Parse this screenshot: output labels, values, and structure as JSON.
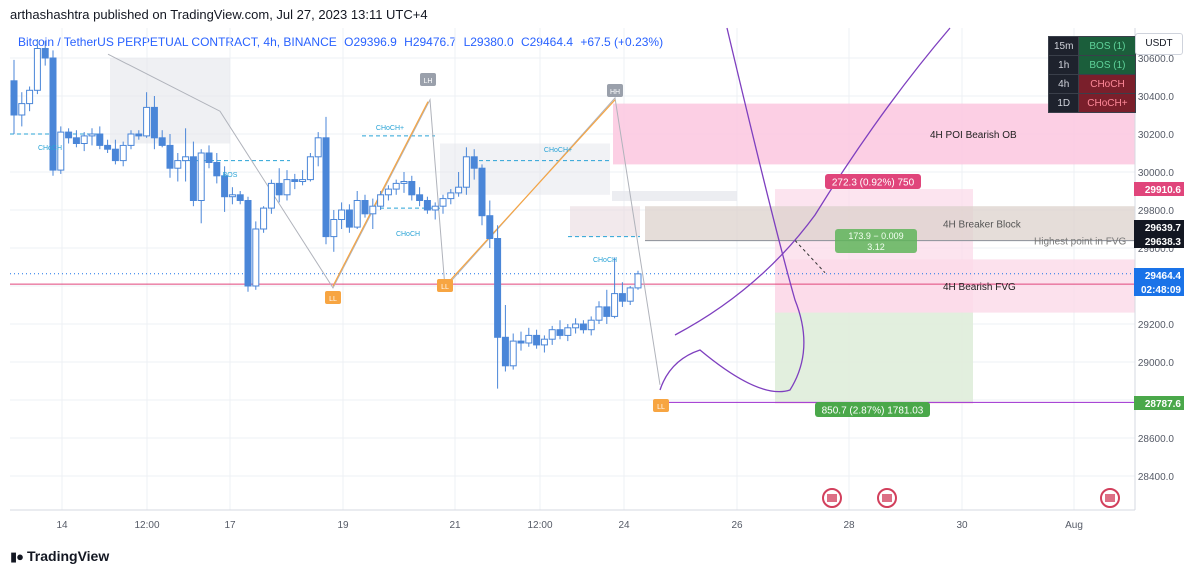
{
  "publisher_line": "arthashashtra published on TradingView.com, Jul 27, 2023 13:11 UTC+4",
  "legend": {
    "symbol": "Bitcoin / TetherUS PERPETUAL CONTRACT, 4h, BINANCE",
    "open": "O29396.9",
    "high": "H29476.7",
    "low": "L29380.0",
    "close": "C29464.4",
    "change": "+67.5 (+0.23%)"
  },
  "currency_button": "USDT",
  "brand": "TradingView",
  "colors": {
    "bull": "#2962ff",
    "bear": "#4a86d8",
    "poi_zone": "#fcc7df",
    "breaker_zone": "#dcd2cc",
    "fvg_zone": "#fbd9e8",
    "target_zone": "#dff0dc",
    "swing_line": "#f7a542",
    "zigzag_line": "#b0b3bb",
    "curve": "#7e3fbf",
    "choch": "#29a3d6",
    "price_tag": "#1a73e8"
  },
  "tf_table": [
    {
      "tf": "15m",
      "status": "BOS (1)",
      "kind": "bos"
    },
    {
      "tf": "1h",
      "status": "BOS (1)",
      "kind": "bos"
    },
    {
      "tf": "4h",
      "status": "CHoCH",
      "kind": "choch"
    },
    {
      "tf": "1D",
      "status": "CHoCH+",
      "kind": "choch"
    }
  ],
  "zone_labels": {
    "poi": "4H POI Bearish OB",
    "breaker": "4H Breaker Block",
    "fvg": "4H Bearish FVG",
    "fvg_high": "Highest point in FVG"
  },
  "measure_labels": {
    "upper": "272.3 (0.92%) 750",
    "middle_top": "173.9 − 0.009",
    "middle_bottom": "3.12",
    "lower": "850.7 (2.87%) 1781.03"
  },
  "structure_labels": [
    "CHoCH",
    "BOS",
    "CHoCH+",
    "CHoCH",
    "CHoCH+",
    "CHoCH"
  ],
  "swing_labels": [
    "LL",
    "LL",
    "LL",
    "LH",
    "HH"
  ],
  "price_tags": [
    {
      "text": "29910.6",
      "kind": "pink"
    },
    {
      "text": "29639.7",
      "kind": "black"
    },
    {
      "text": "29638.3",
      "kind": "black"
    },
    {
      "text": "29464.4",
      "kind": "blue"
    },
    {
      "text": "02:48:09",
      "kind": "blue"
    },
    {
      "text": "28787.6",
      "kind": "green"
    }
  ],
  "chart_data": {
    "type": "candlestick",
    "symbol": "BTCUSDT.P",
    "timeframe": "4h",
    "y_axis": {
      "ticks": [
        28400,
        28600,
        28800,
        29000,
        29200,
        29400,
        29600,
        29800,
        30000,
        30200,
        30400,
        30600
      ],
      "tick_labels": [
        "28400.0",
        "28600.0",
        "28800.0",
        "29000.0",
        "29200.0",
        "29400.0",
        "29600.0",
        "29800.0",
        "30000.0",
        "30200.0",
        "30400.0",
        "30600.0"
      ]
    },
    "x_axis": {
      "tick_labels": [
        "14",
        "12:00",
        "17",
        "19",
        "21",
        "12:00",
        "24",
        "26",
        "28",
        "30",
        "Aug"
      ]
    },
    "candles": [
      [
        30480,
        30590,
        30200,
        30300
      ],
      [
        30300,
        30420,
        30240,
        30360
      ],
      [
        30360,
        30450,
        30320,
        30430
      ],
      [
        30430,
        30700,
        30410,
        30650
      ],
      [
        30650,
        30690,
        30560,
        30600
      ],
      [
        30600,
        30640,
        29980,
        30010
      ],
      [
        30010,
        30240,
        29990,
        30210
      ],
      [
        30210,
        30230,
        30150,
        30180
      ],
      [
        30180,
        30220,
        30130,
        30150
      ],
      [
        30150,
        30210,
        30110,
        30190
      ],
      [
        30190,
        30230,
        30140,
        30200
      ],
      [
        30200,
        30240,
        30120,
        30140
      ],
      [
        30140,
        30170,
        30100,
        30120
      ],
      [
        30120,
        30170,
        30040,
        30060
      ],
      [
        30060,
        30160,
        30030,
        30140
      ],
      [
        30140,
        30220,
        30120,
        30200
      ],
      [
        30200,
        30220,
        30170,
        30190
      ],
      [
        30190,
        30420,
        30180,
        30340
      ],
      [
        30340,
        30400,
        30120,
        30180
      ],
      [
        30180,
        30220,
        30130,
        30140
      ],
      [
        30140,
        30200,
        29970,
        30020
      ],
      [
        30020,
        30100,
        29950,
        30060
      ],
      [
        30060,
        30230,
        29950,
        30080
      ],
      [
        30080,
        30160,
        29820,
        29850
      ],
      [
        29850,
        30120,
        29730,
        30100
      ],
      [
        30100,
        30140,
        30020,
        30050
      ],
      [
        30050,
        30100,
        29940,
        29980
      ],
      [
        29980,
        30030,
        29790,
        29870
      ],
      [
        29870,
        29920,
        29830,
        29880
      ],
      [
        29880,
        29900,
        29830,
        29850
      ],
      [
        29850,
        29870,
        29370,
        29400
      ],
      [
        29400,
        29740,
        29380,
        29700
      ],
      [
        29700,
        29820,
        29680,
        29810
      ],
      [
        29810,
        29960,
        29780,
        29940
      ],
      [
        29940,
        30020,
        29840,
        29880
      ],
      [
        29880,
        30010,
        29850,
        29960
      ],
      [
        29960,
        29990,
        29910,
        29950
      ],
      [
        29950,
        30010,
        29930,
        29960
      ],
      [
        29960,
        30100,
        29950,
        30080
      ],
      [
        30080,
        30210,
        30030,
        30180
      ],
      [
        30180,
        30290,
        29620,
        29660
      ],
      [
        29660,
        29800,
        29580,
        29750
      ],
      [
        29750,
        29840,
        29700,
        29800
      ],
      [
        29800,
        29830,
        29680,
        29710
      ],
      [
        29710,
        29900,
        29700,
        29850
      ],
      [
        29850,
        29880,
        29760,
        29780
      ],
      [
        29780,
        29860,
        29700,
        29820
      ],
      [
        29820,
        29900,
        29800,
        29880
      ],
      [
        29880,
        29930,
        29850,
        29910
      ],
      [
        29910,
        29960,
        29880,
        29940
      ],
      [
        29940,
        30000,
        29890,
        29950
      ],
      [
        29950,
        29980,
        29850,
        29880
      ],
      [
        29880,
        29920,
        29820,
        29850
      ],
      [
        29850,
        29870,
        29780,
        29800
      ],
      [
        29800,
        29840,
        29750,
        29820
      ],
      [
        29820,
        29880,
        29780,
        29860
      ],
      [
        29860,
        29910,
        29830,
        29890
      ],
      [
        29890,
        30000,
        29870,
        29920
      ],
      [
        29920,
        30130,
        29880,
        30080
      ],
      [
        30080,
        30120,
        29960,
        30020
      ],
      [
        30020,
        30040,
        29720,
        29770
      ],
      [
        29770,
        29850,
        29600,
        29650
      ],
      [
        29650,
        29720,
        28860,
        29130
      ],
      [
        29130,
        29300,
        28950,
        28980
      ],
      [
        28980,
        29150,
        28960,
        29110
      ],
      [
        29110,
        29160,
        29060,
        29100
      ],
      [
        29100,
        29180,
        29080,
        29140
      ],
      [
        29140,
        29170,
        29070,
        29090
      ],
      [
        29090,
        29140,
        29050,
        29120
      ],
      [
        29120,
        29190,
        29090,
        29170
      ],
      [
        29170,
        29220,
        29120,
        29140
      ],
      [
        29140,
        29200,
        29110,
        29180
      ],
      [
        29180,
        29230,
        29150,
        29200
      ],
      [
        29200,
        29220,
        29150,
        29170
      ],
      [
        29170,
        29240,
        29140,
        29220
      ],
      [
        29220,
        29320,
        29200,
        29290
      ],
      [
        29290,
        29380,
        29200,
        29240
      ],
      [
        29240,
        29550,
        29230,
        29360
      ],
      [
        29360,
        29420,
        29290,
        29320
      ],
      [
        29320,
        29400,
        29300,
        29390
      ],
      [
        29390,
        29480,
        29380,
        29464
      ]
    ],
    "zones": [
      {
        "name": "4H POI Bearish OB",
        "from": 30040,
        "to": 30360
      },
      {
        "name": "4H Breaker Block",
        "from": 29639,
        "to": 29820
      },
      {
        "name": "4H Bearish FVG",
        "from": 29260,
        "to": 29540
      }
    ],
    "levels": [
      29910.6,
      29639.7,
      29638.3,
      29464.4,
      28787.6
    ],
    "grid": true
  }
}
